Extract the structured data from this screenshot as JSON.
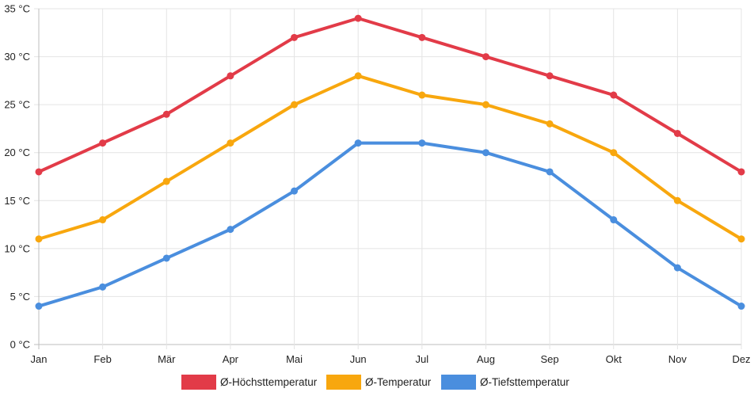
{
  "chart_data": {
    "type": "line",
    "title": "",
    "xlabel": "",
    "ylabel": "",
    "categories": [
      "Jan",
      "Feb",
      "Mär",
      "Apr",
      "Mai",
      "Jun",
      "Jul",
      "Aug",
      "Sep",
      "Okt",
      "Nov",
      "Dez"
    ],
    "ylim": [
      0,
      35
    ],
    "y_ticks": [
      {
        "value": 0,
        "label": "0 °C"
      },
      {
        "value": 5,
        "label": "5 °C"
      },
      {
        "value": 10,
        "label": "10 °C"
      },
      {
        "value": 15,
        "label": "15 °C"
      },
      {
        "value": 20,
        "label": "20 °C"
      },
      {
        "value": 25,
        "label": "25 °C"
      },
      {
        "value": 30,
        "label": "30 °C"
      },
      {
        "value": 35,
        "label": "35 °C"
      }
    ],
    "grid": true,
    "legend_position": "bottom",
    "series": [
      {
        "name": "Ø-Höchsttemperatur",
        "color": "#e23b48",
        "values": [
          18,
          21,
          24,
          28,
          32,
          34,
          32,
          30,
          28,
          26,
          22,
          18
        ]
      },
      {
        "name": "Ø-Temperatur",
        "color": "#f8a70e",
        "values": [
          11,
          13,
          17,
          21,
          25,
          28,
          26,
          25,
          23,
          20,
          15,
          11
        ]
      },
      {
        "name": "Ø-Tiefsttemperatur",
        "color": "#4a8ede",
        "values": [
          4,
          6,
          9,
          12,
          16,
          21,
          21,
          20,
          18,
          13,
          8,
          4
        ]
      }
    ]
  }
}
